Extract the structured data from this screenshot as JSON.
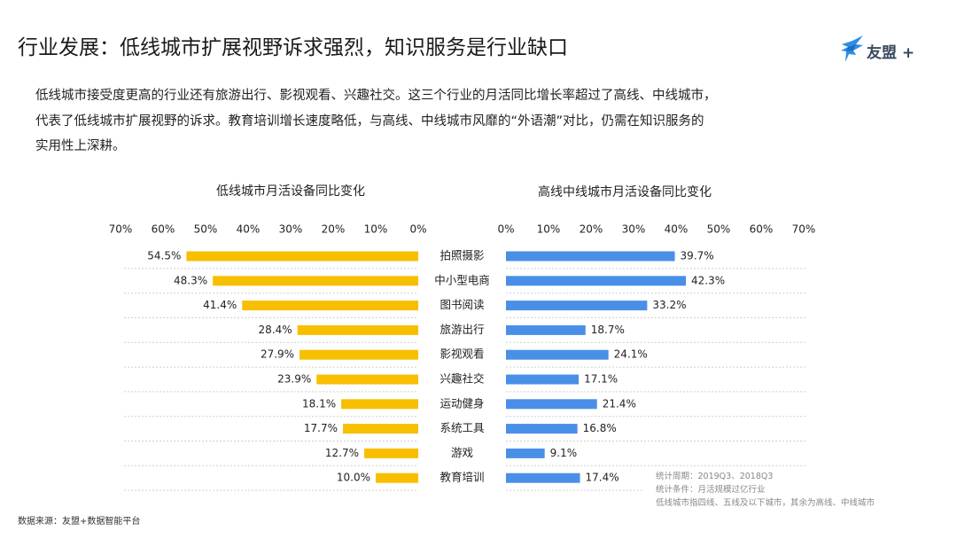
{
  "slide": {
    "title": "行业发展：低线城市扩展视野诉求强烈，知识服务是行业缺口",
    "logo_text": "友盟 +",
    "intro_lines": [
      "低线城市接受度更高的行业还有旅游出行、影视观看、兴趣社交。这三个行业的月活同比增长率超过了高线、中线城市，",
      "代表了低线城市扩展视野的诉求。教育培训增长速度略低，与高线、中线城市风靡的“外语潮”对比，仍需在知识服务的",
      "实用性上深耕。"
    ],
    "notes": [
      "统计周期：2019Q3、2018Q3",
      "统计条件：月活规模过亿行业",
      "低线城市指四线、五线及以下城市，其余为高线、中线城市"
    ],
    "source": "数据来源：友盟+数据智能平台"
  },
  "chart_data": {
    "type": "bar",
    "orientation": "horizontal",
    "categories": [
      "拍照摄影",
      "中小型电商",
      "图书阅读",
      "旅游出行",
      "影视观看",
      "兴趣社交",
      "运动健身",
      "系统工具",
      "游戏",
      "教育培训"
    ],
    "tick_labels": [
      "0%",
      "10%",
      "20%",
      "30%",
      "40%",
      "50%",
      "60%",
      "70%"
    ],
    "xlim": [
      0,
      70
    ],
    "grid": "horizontal dotted separators",
    "series": [
      {
        "name": "低线城市",
        "title": "低线城市月活设备同比变化",
        "values": [
          54.5,
          48.3,
          41.4,
          28.4,
          27.9,
          23.9,
          18.1,
          17.7,
          12.7,
          10.0
        ],
        "labels": [
          "54.5%",
          "48.3%",
          "41.4%",
          "28.4%",
          "27.9%",
          "23.9%",
          "18.1%",
          "17.7%",
          "12.7%",
          "10.0%"
        ],
        "color": "#F7BF00",
        "direction": "leftward"
      },
      {
        "name": "高线中线城市",
        "title": "高线中线城市月活设备同比变化",
        "values": [
          39.7,
          42.3,
          33.2,
          18.7,
          24.1,
          17.1,
          21.4,
          16.8,
          9.1,
          17.4
        ],
        "labels": [
          "39.7%",
          "42.3%",
          "33.2%",
          "18.7%",
          "24.1%",
          "17.1%",
          "21.4%",
          "16.8%",
          "9.1%",
          "17.4%"
        ],
        "color": "#4A8FE7",
        "direction": "rightward"
      }
    ]
  }
}
